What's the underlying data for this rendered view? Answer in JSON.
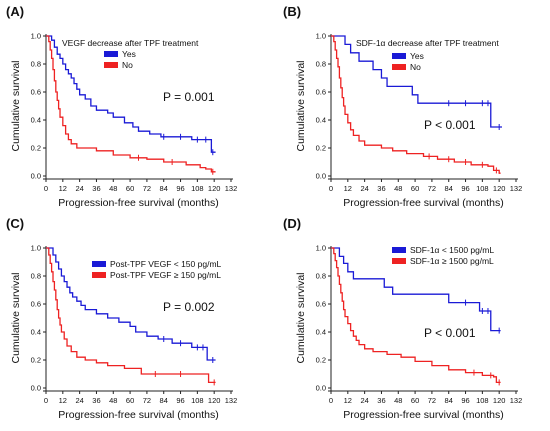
{
  "chart_data": [
    {
      "panel_label": "(A)",
      "type": "line",
      "subtype": "kaplan-meier",
      "title": "",
      "annotation": "VEGF decrease after TPF treatment",
      "xlabel": "Progression-free survival (months)",
      "ylabel": "Cumulative survival",
      "xlim": [
        0,
        132
      ],
      "ylim": [
        0,
        1.0
      ],
      "xticks": [
        "0",
        "12",
        "24",
        "36",
        "48",
        "60",
        "72",
        "84",
        "96",
        "108",
        "120",
        "132"
      ],
      "yticks": [
        "0.0",
        "0.2",
        "0.4",
        "0.6",
        "0.8",
        "1.0"
      ],
      "legend_placement": "top-right",
      "p_value": "P = 0.001",
      "series": [
        {
          "name": "Yes",
          "color": "#1a1ad6",
          "steps": [
            [
              0,
              1.0
            ],
            [
              4,
              0.97
            ],
            [
              6,
              0.92
            ],
            [
              8,
              0.87
            ],
            [
              10,
              0.84
            ],
            [
              12,
              0.8
            ],
            [
              14,
              0.76
            ],
            [
              16,
              0.73
            ],
            [
              18,
              0.7
            ],
            [
              20,
              0.66
            ],
            [
              22,
              0.62
            ],
            [
              24,
              0.58
            ],
            [
              28,
              0.55
            ],
            [
              32,
              0.5
            ],
            [
              36,
              0.47
            ],
            [
              44,
              0.45
            ],
            [
              48,
              0.42
            ],
            [
              56,
              0.38
            ],
            [
              62,
              0.35
            ],
            [
              66,
              0.32
            ],
            [
              74,
              0.3
            ],
            [
              82,
              0.28
            ],
            [
              104,
              0.26
            ],
            [
              118,
              0.17
            ],
            [
              121,
              0.17
            ]
          ],
          "censored": [
            [
              84,
              0.28
            ],
            [
              96,
              0.28
            ],
            [
              108,
              0.26
            ],
            [
              114,
              0.26
            ],
            [
              119,
              0.17
            ]
          ]
        },
        {
          "name": "No",
          "color": "#ee2222",
          "steps": [
            [
              0,
              1.0
            ],
            [
              2,
              0.96
            ],
            [
              3,
              0.9
            ],
            [
              4,
              0.84
            ],
            [
              5,
              0.76
            ],
            [
              6,
              0.68
            ],
            [
              7,
              0.6
            ],
            [
              8,
              0.54
            ],
            [
              9,
              0.48
            ],
            [
              10,
              0.42
            ],
            [
              12,
              0.36
            ],
            [
              14,
              0.3
            ],
            [
              16,
              0.26
            ],
            [
              18,
              0.23
            ],
            [
              22,
              0.2
            ],
            [
              36,
              0.18
            ],
            [
              48,
              0.15
            ],
            [
              60,
              0.13
            ],
            [
              72,
              0.12
            ],
            [
              84,
              0.1
            ],
            [
              100,
              0.08
            ],
            [
              110,
              0.06
            ],
            [
              114,
              0.05
            ],
            [
              118,
              0.03
            ],
            [
              121,
              0.03
            ]
          ],
          "censored": [
            [
              66,
              0.13
            ],
            [
              90,
              0.1
            ],
            [
              119,
              0.03
            ]
          ]
        }
      ]
    },
    {
      "panel_label": "(B)",
      "type": "line",
      "subtype": "kaplan-meier",
      "title": "",
      "annotation": "SDF-1α  decrease after TPF treatment",
      "xlabel": "Progression-free survival (months)",
      "ylabel": "Cumulative survival",
      "xlim": [
        0,
        132
      ],
      "ylim": [
        0,
        1.0
      ],
      "xticks": [
        "0",
        "12",
        "24",
        "36",
        "48",
        "60",
        "72",
        "84",
        "96",
        "108",
        "120",
        "132"
      ],
      "yticks": [
        "0.0",
        "0.2",
        "0.4",
        "0.6",
        "0.8",
        "1.0"
      ],
      "legend_placement": "top-right",
      "p_value": "P < 0.001",
      "series": [
        {
          "name": "Yes",
          "color": "#1a1ad6",
          "steps": [
            [
              0,
              1.0
            ],
            [
              10,
              0.94
            ],
            [
              14,
              0.88
            ],
            [
              20,
              0.82
            ],
            [
              30,
              0.76
            ],
            [
              36,
              0.7
            ],
            [
              40,
              0.64
            ],
            [
              58,
              0.58
            ],
            [
              62,
              0.52
            ],
            [
              110,
              0.52
            ],
            [
              114,
              0.35
            ],
            [
              122,
              0.35
            ]
          ],
          "censored": [
            [
              84,
              0.52
            ],
            [
              96,
              0.52
            ],
            [
              108,
              0.52
            ],
            [
              112,
              0.52
            ],
            [
              120,
              0.35
            ]
          ]
        },
        {
          "name": "No",
          "color": "#ee2222",
          "steps": [
            [
              0,
              1.0
            ],
            [
              2,
              0.96
            ],
            [
              3,
              0.9
            ],
            [
              4,
              0.84
            ],
            [
              5,
              0.78
            ],
            [
              6,
              0.7
            ],
            [
              7,
              0.63
            ],
            [
              8,
              0.56
            ],
            [
              9,
              0.5
            ],
            [
              10,
              0.44
            ],
            [
              12,
              0.38
            ],
            [
              14,
              0.33
            ],
            [
              16,
              0.29
            ],
            [
              20,
              0.25
            ],
            [
              24,
              0.22
            ],
            [
              36,
              0.2
            ],
            [
              44,
              0.18
            ],
            [
              54,
              0.16
            ],
            [
              66,
              0.14
            ],
            [
              76,
              0.12
            ],
            [
              88,
              0.1
            ],
            [
              100,
              0.08
            ],
            [
              112,
              0.07
            ],
            [
              116,
              0.04
            ],
            [
              120,
              0.02
            ],
            [
              121,
              0.02
            ]
          ],
          "censored": [
            [
              70,
              0.14
            ],
            [
              84,
              0.12
            ],
            [
              96,
              0.1
            ],
            [
              108,
              0.08
            ],
            [
              118,
              0.04
            ]
          ]
        }
      ]
    },
    {
      "panel_label": "(C)",
      "type": "line",
      "subtype": "kaplan-meier",
      "title": "",
      "annotation": "",
      "xlabel": "Progression-free survival (months)",
      "ylabel": "Cumulative survival",
      "xlim": [
        0,
        132
      ],
      "ylim": [
        0,
        1.0
      ],
      "xticks": [
        "0",
        "12",
        "24",
        "36",
        "48",
        "60",
        "72",
        "84",
        "96",
        "108",
        "120",
        "132"
      ],
      "yticks": [
        "0.0",
        "0.2",
        "0.4",
        "0.6",
        "0.8",
        "1.0"
      ],
      "legend_placement": "top-right",
      "p_value": "P = 0.002",
      "series": [
        {
          "name": "Post-TPF VEGF < 150 pg/mL",
          "color": "#1a1ad6",
          "steps": [
            [
              0,
              1.0
            ],
            [
              5,
              0.95
            ],
            [
              7,
              0.9
            ],
            [
              9,
              0.85
            ],
            [
              11,
              0.8
            ],
            [
              13,
              0.76
            ],
            [
              15,
              0.72
            ],
            [
              17,
              0.68
            ],
            [
              19,
              0.65
            ],
            [
              22,
              0.62
            ],
            [
              25,
              0.59
            ],
            [
              28,
              0.56
            ],
            [
              36,
              0.53
            ],
            [
              44,
              0.5
            ],
            [
              52,
              0.47
            ],
            [
              60,
              0.44
            ],
            [
              64,
              0.4
            ],
            [
              72,
              0.37
            ],
            [
              80,
              0.35
            ],
            [
              90,
              0.32
            ],
            [
              104,
              0.29
            ],
            [
              115,
              0.2
            ],
            [
              121,
              0.2
            ]
          ],
          "censored": [
            [
              84,
              0.35
            ],
            [
              96,
              0.32
            ],
            [
              108,
              0.29
            ],
            [
              112,
              0.29
            ],
            [
              119,
              0.2
            ]
          ]
        },
        {
          "name": "Post-TPF VEGF ≥ 150 pg/mL",
          "color": "#ee2222",
          "steps": [
            [
              0,
              1.0
            ],
            [
              2,
              0.95
            ],
            [
              3,
              0.89
            ],
            [
              4,
              0.83
            ],
            [
              5,
              0.76
            ],
            [
              6,
              0.7
            ],
            [
              7,
              0.63
            ],
            [
              8,
              0.56
            ],
            [
              9,
              0.5
            ],
            [
              10,
              0.45
            ],
            [
              11,
              0.4
            ],
            [
              13,
              0.35
            ],
            [
              15,
              0.3
            ],
            [
              18,
              0.26
            ],
            [
              22,
              0.22
            ],
            [
              28,
              0.2
            ],
            [
              36,
              0.18
            ],
            [
              44,
              0.16
            ],
            [
              56,
              0.14
            ],
            [
              68,
              0.1
            ],
            [
              110,
              0.1
            ],
            [
              116,
              0.04
            ],
            [
              121,
              0.04
            ]
          ],
          "censored": [
            [
              78,
              0.1
            ],
            [
              96,
              0.1
            ],
            [
              120,
              0.04
            ]
          ]
        }
      ]
    },
    {
      "panel_label": "(D)",
      "type": "line",
      "subtype": "kaplan-meier",
      "title": "",
      "annotation": "",
      "xlabel": "Progression-free survival (months)",
      "ylabel": "Cumulative survival",
      "xlim": [
        0,
        132
      ],
      "ylim": [
        0,
        1.0
      ],
      "xticks": [
        "0",
        "12",
        "24",
        "36",
        "48",
        "60",
        "72",
        "84",
        "96",
        "108",
        "120",
        "132"
      ],
      "yticks": [
        "0.0",
        "0.2",
        "0.4",
        "0.6",
        "0.8",
        "1.0"
      ],
      "legend_placement": "top-right",
      "p_value": "P < 0.001",
      "series": [
        {
          "name": "SDF-1α < 1500 pg/mL",
          "color": "#1a1ad6",
          "steps": [
            [
              0,
              1.0
            ],
            [
              6,
              0.94
            ],
            [
              9,
              0.89
            ],
            [
              12,
              0.83
            ],
            [
              16,
              0.78
            ],
            [
              38,
              0.72
            ],
            [
              44,
              0.67
            ],
            [
              84,
              0.61
            ],
            [
              106,
              0.55
            ],
            [
              114,
              0.41
            ],
            [
              121,
              0.41
            ]
          ],
          "censored": [
            [
              96,
              0.61
            ],
            [
              108,
              0.55
            ],
            [
              112,
              0.55
            ],
            [
              120,
              0.41
            ]
          ]
        },
        {
          "name": "SDF-1α ≥ 1500 pg/mL",
          "color": "#ee2222",
          "steps": [
            [
              0,
              1.0
            ],
            [
              2,
              0.96
            ],
            [
              3,
              0.91
            ],
            [
              4,
              0.86
            ],
            [
              5,
              0.8
            ],
            [
              6,
              0.74
            ],
            [
              7,
              0.68
            ],
            [
              8,
              0.62
            ],
            [
              9,
              0.56
            ],
            [
              10,
              0.51
            ],
            [
              12,
              0.46
            ],
            [
              14,
              0.41
            ],
            [
              16,
              0.37
            ],
            [
              18,
              0.34
            ],
            [
              20,
              0.31
            ],
            [
              24,
              0.28
            ],
            [
              30,
              0.26
            ],
            [
              40,
              0.24
            ],
            [
              50,
              0.22
            ],
            [
              60,
              0.19
            ],
            [
              72,
              0.16
            ],
            [
              84,
              0.13
            ],
            [
              96,
              0.11
            ],
            [
              108,
              0.09
            ],
            [
              116,
              0.08
            ],
            [
              118,
              0.04
            ],
            [
              121,
              0.04
            ]
          ],
          "censored": [
            [
              102,
              0.11
            ],
            [
              114,
              0.09
            ],
            [
              120,
              0.04
            ]
          ]
        }
      ]
    }
  ]
}
